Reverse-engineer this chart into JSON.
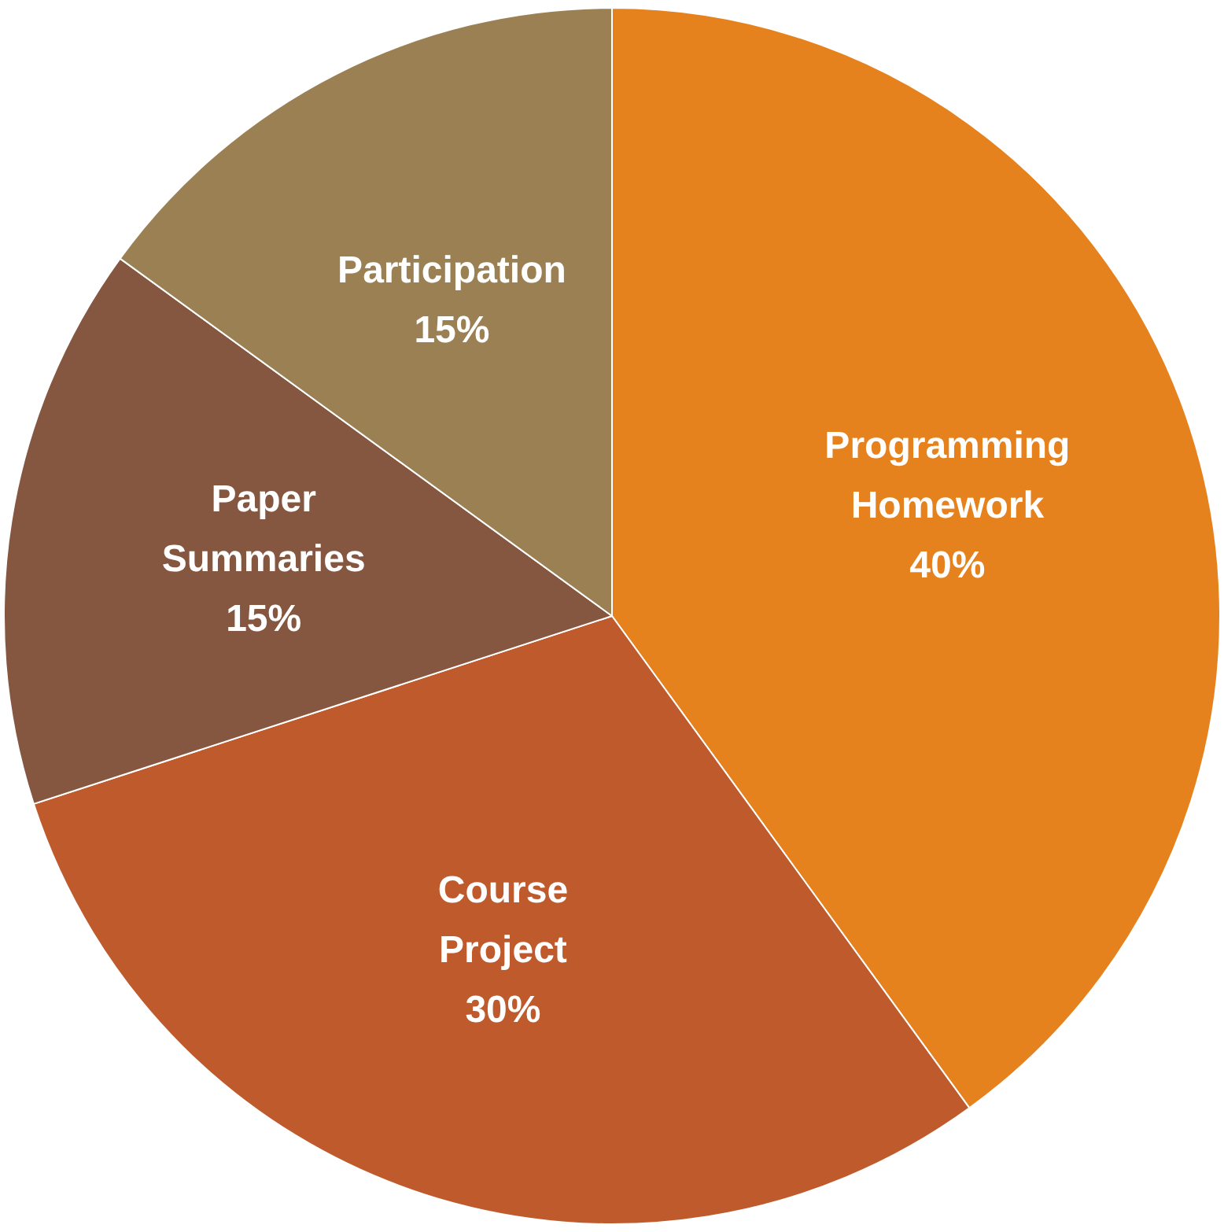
{
  "chart_data": {
    "type": "pie",
    "categories": [
      "Programming Homework",
      "Course Project",
      "Paper Summaries",
      "Participation"
    ],
    "values": [
      40,
      30,
      15,
      15
    ],
    "colors": [
      "#e6821e",
      "#bf5a2c",
      "#855640",
      "#9b8054"
    ],
    "value_labels": [
      "40%",
      "30%",
      "15%",
      "15%"
    ]
  }
}
